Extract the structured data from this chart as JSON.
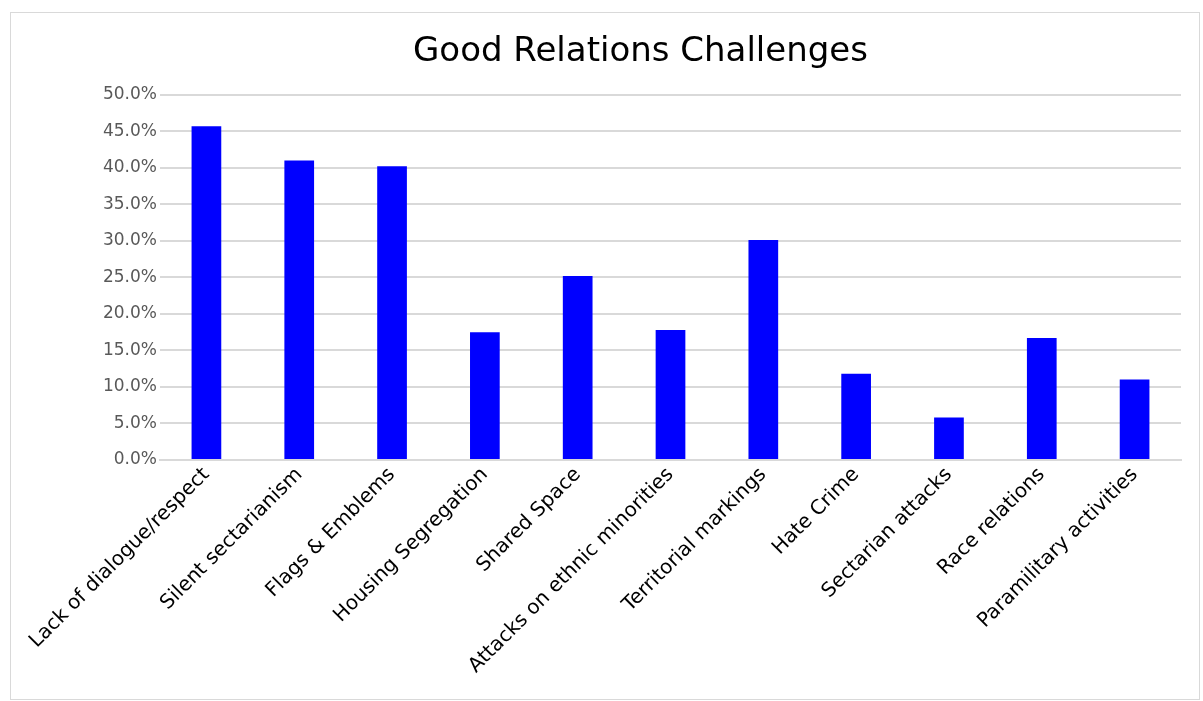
{
  "chart_data": {
    "type": "bar",
    "title": "Good Relations Challenges",
    "categories": [
      "Lack of dialogue/respect",
      "Silent sectarianism",
      "Flags & Emblems",
      "Housing Segregation",
      "Shared Space",
      "Attacks on ethnic minorities",
      "Territorial markings",
      "Hate Crime",
      "Sectarian attacks",
      "Race relations",
      "Paramilitary activities"
    ],
    "values": [
      45.7,
      41.0,
      40.2,
      17.5,
      25.2,
      17.8,
      30.1,
      11.8,
      5.8,
      16.7,
      11.0
    ],
    "color": "#0000ff",
    "ylim": [
      0,
      50
    ],
    "yticks": [
      {
        "value": 0,
        "label": "0.0%"
      },
      {
        "value": 5,
        "label": "5.0%"
      },
      {
        "value": 10,
        "label": "10.0%"
      },
      {
        "value": 15,
        "label": "15.0%"
      },
      {
        "value": 20,
        "label": "20.0%"
      },
      {
        "value": 25,
        "label": "25.0%"
      },
      {
        "value": 30,
        "label": "30.0%"
      },
      {
        "value": 35,
        "label": "35.0%"
      },
      {
        "value": 40,
        "label": "40.0%"
      },
      {
        "value": 45,
        "label": "45.0%"
      },
      {
        "value": 50,
        "label": "50.0%"
      }
    ],
    "grid": "y",
    "legend": false
  }
}
